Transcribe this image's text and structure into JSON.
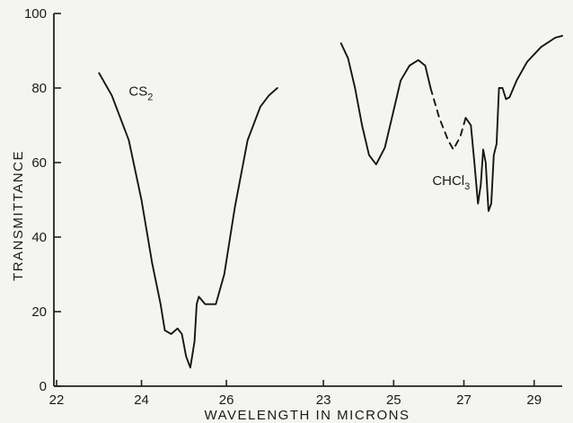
{
  "chart_data": {
    "type": "line",
    "title": "",
    "xlabel": "WAVELENGTH IN MICRONS",
    "ylabel": "TRANSMITTANCE",
    "ylim": [
      0,
      100
    ],
    "y_ticks": [
      0,
      20,
      40,
      60,
      80,
      100
    ],
    "grid": false,
    "panels": [
      {
        "xlim": [
          22,
          27.5
        ],
        "x_ticks": [
          22,
          24,
          26
        ],
        "annotation": {
          "base": "CS",
          "sub": "2",
          "x": 23.7,
          "y": 78
        },
        "series": [
          {
            "style": "solid",
            "points": [
              [
                23.0,
                84
              ],
              [
                23.3,
                78
              ],
              [
                23.7,
                66
              ],
              [
                24.0,
                50
              ],
              [
                24.25,
                33
              ],
              [
                24.45,
                22
              ],
              [
                24.55,
                15
              ],
              [
                24.7,
                14
              ],
              [
                24.85,
                15.5
              ],
              [
                24.95,
                14
              ],
              [
                25.05,
                8
              ],
              [
                25.15,
                5
              ],
              [
                25.25,
                12
              ],
              [
                25.3,
                22
              ],
              [
                25.35,
                24
              ],
              [
                25.5,
                22
              ],
              [
                25.75,
                22
              ],
              [
                25.95,
                30
              ],
              [
                26.2,
                48
              ],
              [
                26.5,
                66
              ],
              [
                26.8,
                75
              ],
              [
                27.0,
                78
              ],
              [
                27.2,
                80
              ]
            ]
          }
        ]
      },
      {
        "xlim": [
          22.0,
          29.8
        ],
        "x_ticks": [
          23,
          25,
          27,
          29
        ],
        "annotation": {
          "base": "CHCl",
          "sub": "3",
          "x": 26.1,
          "y": 54
        },
        "series": [
          {
            "style": "solid",
            "points": [
              [
                23.5,
                92
              ],
              [
                23.7,
                88
              ],
              [
                23.9,
                80
              ],
              [
                24.1,
                70
              ],
              [
                24.3,
                62
              ],
              [
                24.5,
                59.5
              ],
              [
                24.75,
                64
              ],
              [
                25.0,
                74
              ],
              [
                25.2,
                82
              ],
              [
                25.45,
                86
              ],
              [
                25.7,
                87.5
              ],
              [
                25.9,
                86
              ],
              [
                26.05,
                80
              ]
            ]
          },
          {
            "style": "dashed",
            "points": [
              [
                26.05,
                80
              ],
              [
                26.3,
                72
              ],
              [
                26.55,
                66
              ],
              [
                26.7,
                63.5
              ],
              [
                26.9,
                67
              ],
              [
                27.05,
                72
              ]
            ]
          },
          {
            "style": "solid",
            "points": [
              [
                27.05,
                72
              ],
              [
                27.2,
                70
              ],
              [
                27.3,
                60
              ],
              [
                27.4,
                49
              ],
              [
                27.48,
                54
              ],
              [
                27.55,
                63.5
              ],
              [
                27.62,
                60
              ],
              [
                27.7,
                47
              ],
              [
                27.78,
                49
              ],
              [
                27.85,
                62
              ],
              [
                27.93,
                65
              ],
              [
                28.0,
                80
              ],
              [
                28.1,
                80
              ],
              [
                28.2,
                77
              ],
              [
                28.3,
                77.5
              ],
              [
                28.5,
                82
              ],
              [
                28.8,
                87
              ],
              [
                29.2,
                91
              ],
              [
                29.6,
                93.5
              ],
              [
                29.8,
                94
              ]
            ]
          }
        ]
      }
    ]
  }
}
